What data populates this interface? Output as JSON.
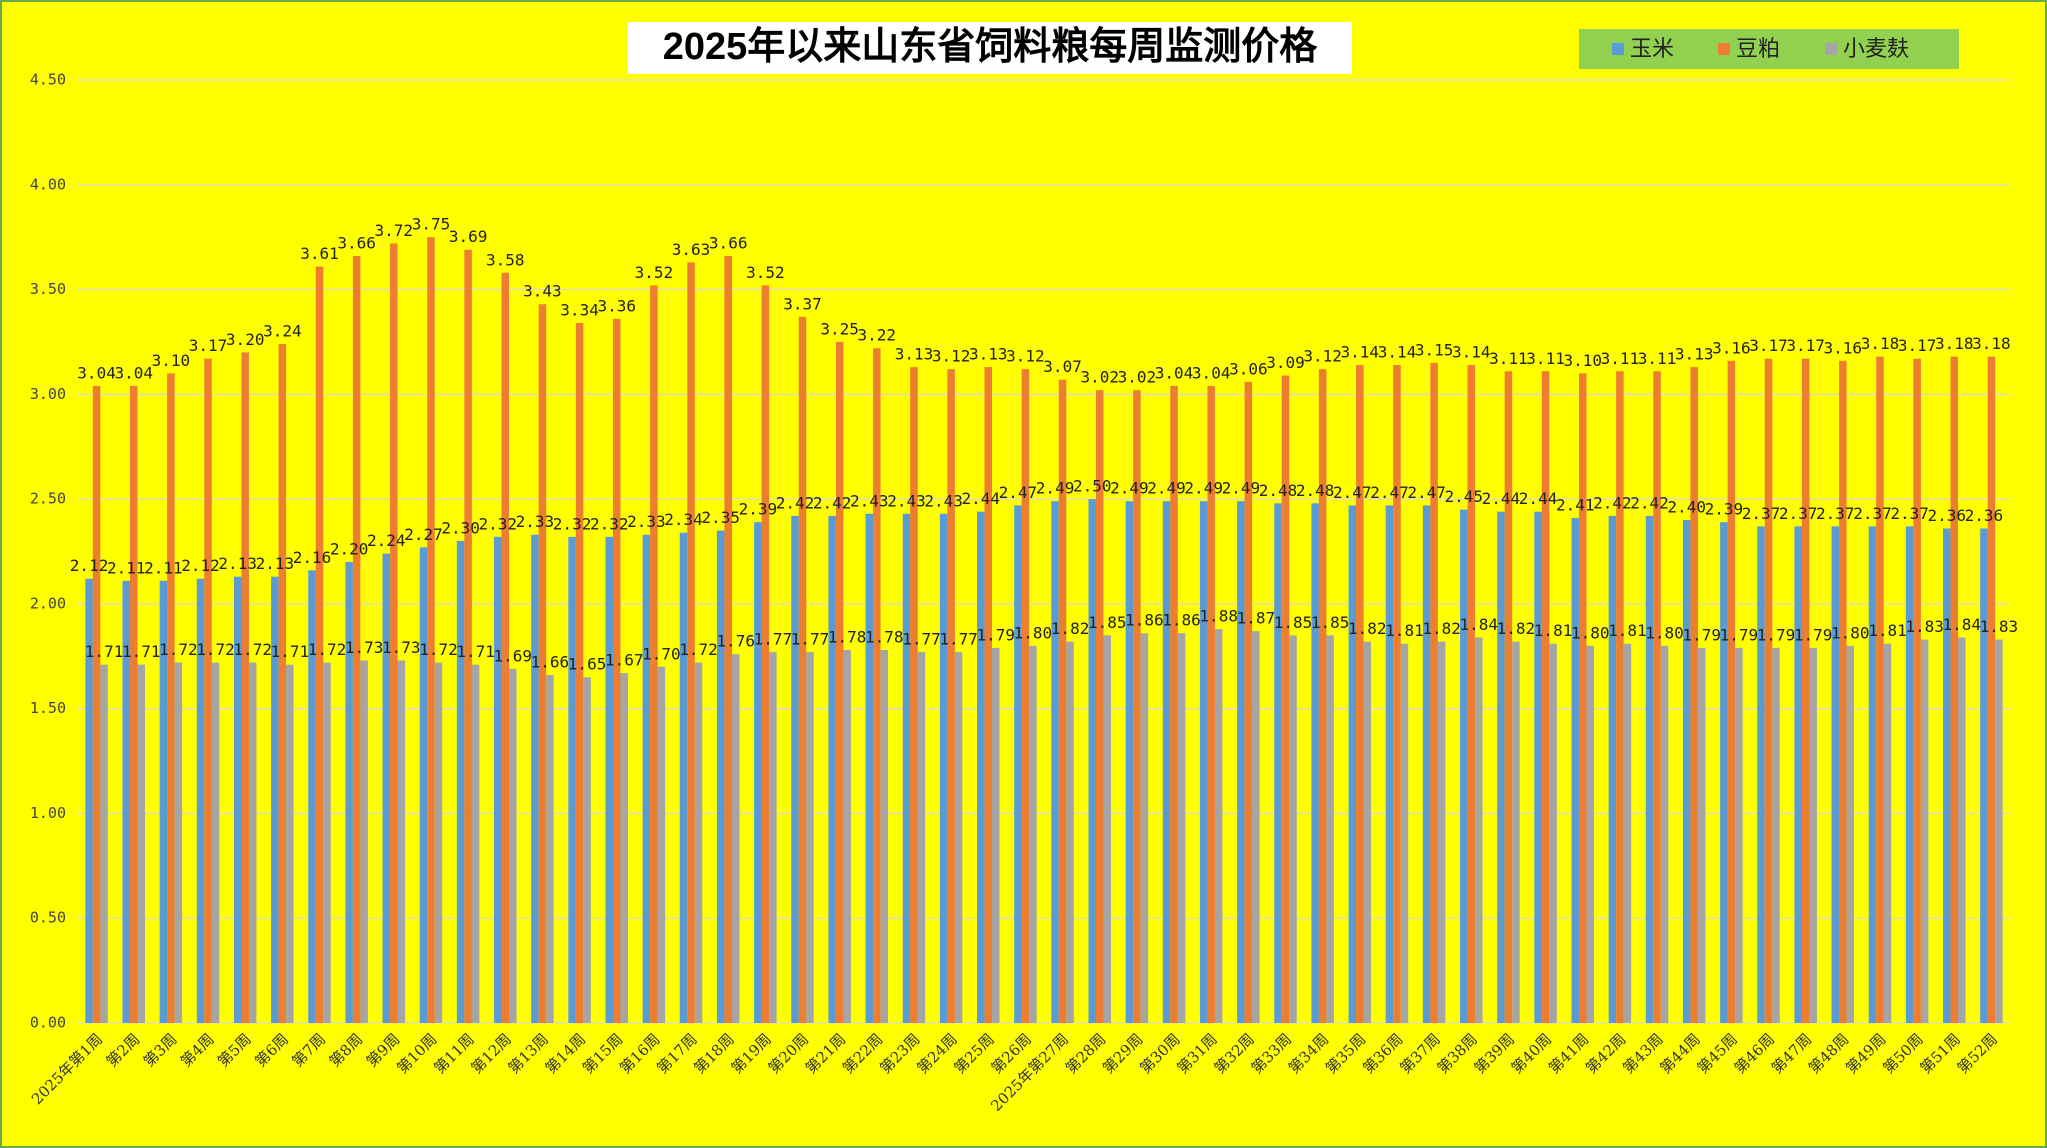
{
  "chart_data": {
    "type": "bar",
    "title": "2025年以来山东省饲料粮每周监测价格",
    "categories": [
      "2025年第1周",
      "第2周",
      "第3周",
      "第4周",
      "第5周",
      "第6周",
      "第7周",
      "第8周",
      "第9周",
      "第10周",
      "第11周",
      "第12周",
      "第13周",
      "第14周",
      "第15周",
      "第16周",
      "第17周",
      "第18周",
      "第19周",
      "第20周",
      "第21周",
      "第22周",
      "第23周",
      "第24周",
      "第25周",
      "第26周",
      "2025年第27周",
      "第28周",
      "第29周",
      "第30周",
      "第31周",
      "第32周",
      "第33周",
      "第34周",
      "第35周",
      "第36周",
      "第37周",
      "第38周",
      "第39周",
      "第40周",
      "第41周",
      "第42周",
      "第43周",
      "第44周",
      "第45周",
      "第46周",
      "第47周",
      "第48周",
      "第49周",
      "第50周",
      "第51周",
      "第52周"
    ],
    "series": [
      {
        "name": "玉米",
        "color": "#5b9bd5",
        "values": [
          2.12,
          2.11,
          2.11,
          2.12,
          2.13,
          2.13,
          2.16,
          2.2,
          2.24,
          2.27,
          2.3,
          2.32,
          2.33,
          2.32,
          2.32,
          2.33,
          2.34,
          2.35,
          2.39,
          2.42,
          2.42,
          2.43,
          2.43,
          2.43,
          2.44,
          2.47,
          2.49,
          2.5,
          2.49,
          2.49,
          2.49,
          2.49,
          2.48,
          2.48,
          2.47,
          2.47,
          2.47,
          2.45,
          2.44,
          2.44,
          2.41,
          2.42,
          2.42,
          2.4,
          2.39,
          2.37,
          2.37,
          2.37,
          2.37,
          2.37,
          2.36,
          2.36
        ],
        "value_labels": [
          "2.12",
          "2.11",
          "2.11",
          "2.12",
          "2.13",
          "2.13",
          "2.16",
          "2.20",
          "2.24",
          "2.27",
          "2.30",
          "2.32",
          "2.33",
          "2.32",
          "2.32",
          "2.33",
          "2.34",
          "2.35",
          "2.39",
          "2.42",
          "2.42",
          "2.43",
          "2.43",
          "2.43",
          "2.44",
          "2.47",
          "2.49",
          "2.50",
          "2.49",
          "2.49",
          "2.49",
          "2.49",
          "2.48",
          "2.48",
          "2.47",
          "2.47",
          "2.47",
          "2.45",
          "2.44",
          "2.44",
          "2.41",
          "2.42",
          "2.42",
          "2.40",
          "2.39",
          "2.37",
          "2.37",
          "2.37",
          "2.37",
          "2.37",
          "2.36",
          "2.36"
        ]
      },
      {
        "name": "豆粕",
        "color": "#ed7d31",
        "values": [
          3.04,
          3.04,
          3.1,
          3.17,
          3.2,
          3.24,
          3.61,
          3.66,
          3.72,
          3.75,
          3.69,
          3.58,
          3.43,
          3.34,
          3.36,
          3.52,
          3.63,
          3.66,
          3.52,
          3.37,
          3.25,
          3.22,
          3.13,
          3.12,
          3.13,
          3.12,
          3.07,
          3.02,
          3.02,
          3.04,
          3.04,
          3.06,
          3.09,
          3.12,
          3.14,
          3.14,
          3.15,
          3.14,
          3.11,
          3.11,
          3.1,
          3.11,
          3.11,
          3.13,
          3.16,
          3.17,
          3.17,
          3.16,
          3.18,
          3.17,
          3.18,
          3.18
        ],
        "value_labels": [
          "3.04",
          "3.04",
          "3.10",
          "3.17",
          "3.20",
          "3.24",
          "3.61",
          "3.66",
          "3.72",
          "3.75",
          "3.69",
          "3.58",
          "3.43",
          "3.34",
          "3.36",
          "3.52",
          "3.63",
          "3.66",
          "3.52",
          "3.37",
          "3.25",
          "3.22",
          "3.13",
          "3.12",
          "3.13",
          "3.12",
          "3.07",
          "3.02",
          "3.02",
          "3.04",
          "3.04",
          "3.06",
          "3.09",
          "3.12",
          "3.14",
          "3.14",
          "3.15",
          "3.14",
          "3.11",
          "3.11",
          "3.10",
          "3.11",
          "3.11",
          "3.13",
          "3.16",
          "3.17",
          "3.17",
          "3.16",
          "3.18",
          "3.17",
          "3.18",
          "3.18"
        ]
      },
      {
        "name": "小麦麸",
        "color": "#a5a5a5",
        "values": [
          1.71,
          1.71,
          1.72,
          1.72,
          1.72,
          1.71,
          1.72,
          1.73,
          1.73,
          1.72,
          1.71,
          1.69,
          1.66,
          1.65,
          1.67,
          1.7,
          1.72,
          1.76,
          1.77,
          1.77,
          1.78,
          1.78,
          1.77,
          1.77,
          1.79,
          1.8,
          1.82,
          1.85,
          1.86,
          1.86,
          1.88,
          1.87,
          1.85,
          1.85,
          1.82,
          1.81,
          1.82,
          1.84,
          1.82,
          1.81,
          1.8,
          1.81,
          1.8,
          1.79,
          1.79,
          1.79,
          1.79,
          1.8,
          1.81,
          1.83,
          1.84,
          1.83
        ],
        "value_labels": [
          "1.71",
          "1.71",
          "1.72",
          "1.72",
          "1.72",
          "1.71",
          "1.72",
          "1.73",
          "1.73",
          "1.72",
          "1.71",
          "1.69",
          "1.66",
          "1.65",
          "1.67",
          "1.70",
          "1.72",
          "1.76",
          "1.77",
          "1.77",
          "1.78",
          "1.78",
          "1.77",
          "1.77",
          "1.79",
          "1.80",
          "1.82",
          "1.85",
          "1.86",
          "1.86",
          "1.88",
          "1.87",
          "1.85",
          "1.85",
          "1.82",
          "1.81",
          "1.82",
          "1.84",
          "1.82",
          "1.81",
          "1.80",
          "1.81",
          "1.80",
          "1.79",
          "1.79",
          "1.79",
          "1.79",
          "1.80",
          "1.81",
          "1.83",
          "1.84",
          "1.83"
        ]
      }
    ],
    "ylim": [
      0,
      4.5
    ],
    "yticks": [
      {
        "value": 0,
        "label": "0.00"
      },
      {
        "value": 0.5,
        "label": "0.50"
      },
      {
        "value": 1,
        "label": "1.00"
      },
      {
        "value": 1.5,
        "label": "1.50"
      },
      {
        "value": 2,
        "label": "2.00"
      },
      {
        "value": 2.5,
        "label": "2.50"
      },
      {
        "value": 3,
        "label": "3.00"
      },
      {
        "value": 3.5,
        "label": "3.50"
      },
      {
        "value": 4,
        "label": "4.00"
      },
      {
        "value": 4.5,
        "label": "4.50"
      }
    ],
    "grid": true,
    "legend": "top-right"
  }
}
